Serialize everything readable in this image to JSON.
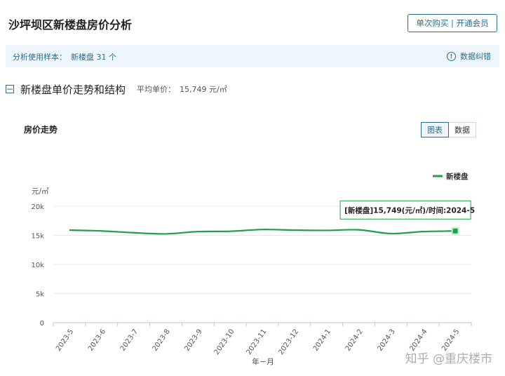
{
  "header": {
    "title": "沙坪坝区新楼盘房价分析",
    "member_button": "单次购买 | 开通会员"
  },
  "info_bar": {
    "sample_label": "分析使用样本：",
    "sample_value": "新楼盘 31 个",
    "correct_label": "数据纠错",
    "correct_icon": "info-icon"
  },
  "section": {
    "title": "新楼盘单价走势和结构",
    "avg_label": "平均单价：",
    "avg_value": "15,749 元/㎡"
  },
  "card": {
    "title": "房价走势",
    "toggle": [
      "图表",
      "数据"
    ],
    "active_toggle": "图表"
  },
  "chart_data": {
    "type": "line",
    "xlabel": "年－月",
    "ylabel": "元/㎡",
    "ylim": [
      0,
      20000
    ],
    "yticks": [
      "0",
      "5k",
      "10k",
      "15k",
      "20k"
    ],
    "categories": [
      "2023-5",
      "2023-6",
      "2023-7",
      "2023-8",
      "2023-9",
      "2023-10",
      "2023-11",
      "2023-12",
      "2024-1",
      "2024-2",
      "2024-3",
      "2024-4",
      "2024-5"
    ],
    "series": [
      {
        "name": "新楼盘",
        "color": "#1fa049",
        "values": [
          15900,
          15750,
          15450,
          15250,
          15650,
          15700,
          16000,
          15900,
          15850,
          15950,
          15300,
          15650,
          15749
        ]
      }
    ],
    "legend": "top-right",
    "grid": true,
    "tooltip": "[新楼盘]15,749(元/㎡)/时间:2024-5"
  },
  "watermark": "知乎 @重庆楼市"
}
